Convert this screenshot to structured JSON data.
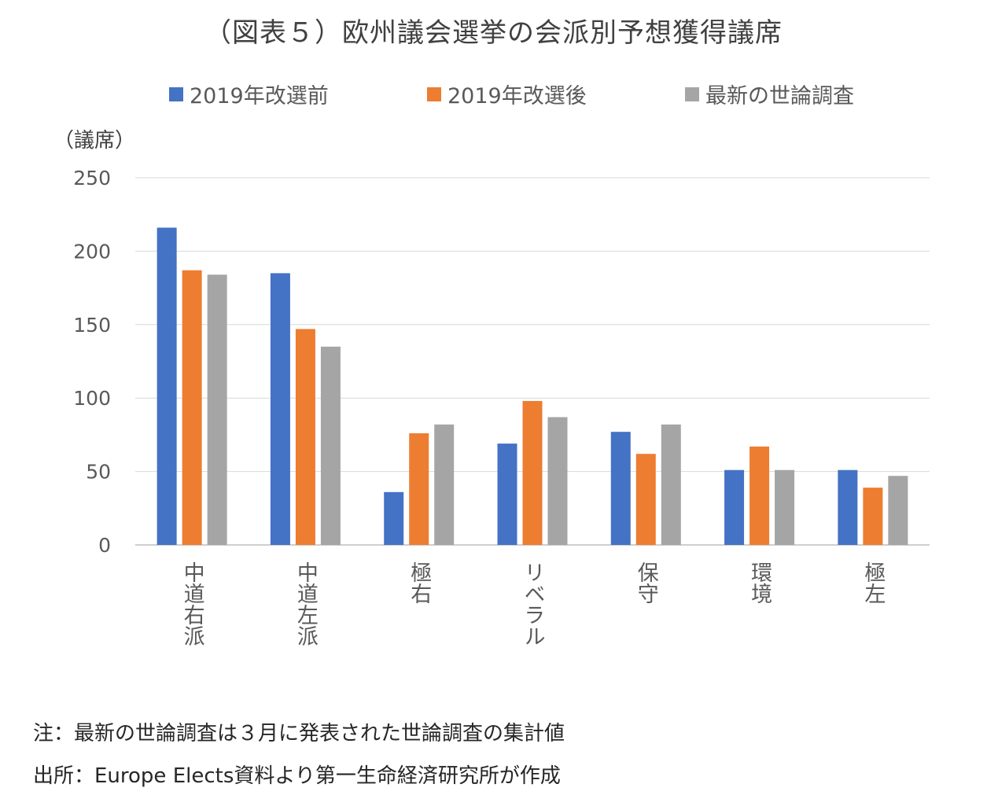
{
  "chart_data": {
    "type": "bar",
    "title": "（図表５）欧州議会選挙の会派別予想獲得議席",
    "ylabel": "（議席）",
    "xlabel": "",
    "categories": [
      "中道右派",
      "中道左派",
      "極右",
      "リベラル",
      "保守",
      "環境",
      "極左"
    ],
    "series": [
      {
        "name": "2019年改選前",
        "color": "#4472C4",
        "values": [
          216,
          185,
          36,
          69,
          77,
          51,
          51
        ]
      },
      {
        "name": "2019年改選後",
        "color": "#ED7D31",
        "values": [
          187,
          147,
          76,
          98,
          62,
          67,
          39
        ]
      },
      {
        "name": "最新の世論調査",
        "color": "#A5A5A5",
        "values": [
          184,
          135,
          82,
          87,
          82,
          51,
          47
        ]
      }
    ],
    "ylim": [
      0,
      250
    ],
    "yticks": [
      0,
      50,
      100,
      150,
      200,
      250
    ],
    "grid": true,
    "legend_position": "top"
  },
  "notes": {
    "line1": "注：最新の世論調査は３月に発表された世論調査の集計値",
    "line2": "出所：Europe Elects資料より第一生命経済研究所が作成"
  }
}
